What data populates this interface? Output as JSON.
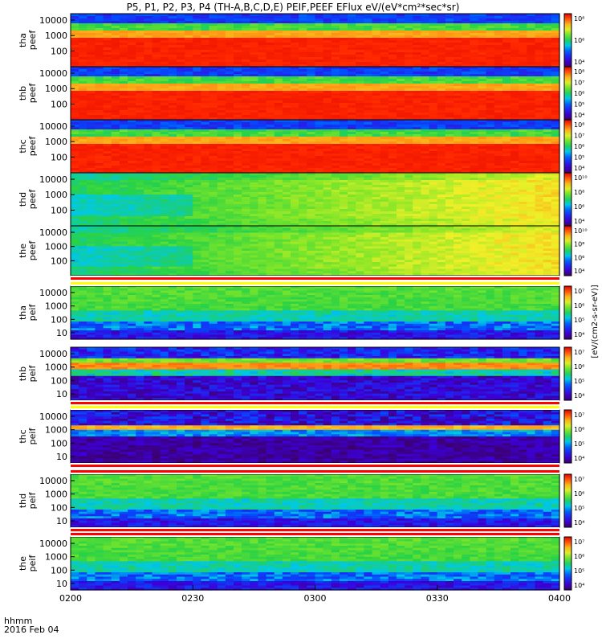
{
  "chart_data": {
    "type": "heatmap",
    "title": "P5, P1, P2, P3, P4 (TH-A,B,C,D,E) PEIF,PEEF EFlux eV/(eV*cm²*sec*sr)",
    "x_axis": {
      "ticks": [
        "0200",
        "0230",
        "0300",
        "0330",
        "0400"
      ],
      "time_label": "hhmm",
      "date_label": "2016 Feb 04"
    },
    "colorbar_label": "[eV/(cm2-s-sr-eV)]",
    "panels": [
      {
        "probe": "tha",
        "kind": "peef",
        "yticks": [
          "10000",
          "1000",
          "100"
        ],
        "ylog": true,
        "cbar_ticks": [
          "10⁴",
          "10⁶",
          "10⁸"
        ],
        "profile": "electron-hot"
      },
      {
        "probe": "thb",
        "kind": "peef",
        "yticks": [
          "10000",
          "1000",
          "100"
        ],
        "ylog": true,
        "cbar_ticks": [
          "10⁴",
          "10⁵",
          "10⁶",
          "10⁷",
          "10⁸"
        ],
        "profile": "electron-hot"
      },
      {
        "probe": "thc",
        "kind": "peef",
        "yticks": [
          "10000",
          "1000",
          "100"
        ],
        "ylog": true,
        "cbar_ticks": [
          "10⁴",
          "10⁵",
          "10⁶",
          "10⁷",
          "10⁸"
        ],
        "profile": "electron-hot"
      },
      {
        "probe": "thd",
        "kind": "peef",
        "yticks": [
          "10000",
          "1000",
          "100"
        ],
        "ylog": true,
        "cbar_ticks": [
          "10⁴",
          "10⁶",
          "10⁸",
          "10¹⁰"
        ],
        "profile": "electron-green"
      },
      {
        "probe": "the",
        "kind": "peef",
        "yticks": [
          "10000",
          "1000",
          "100"
        ],
        "ylog": true,
        "cbar_ticks": [
          "10⁴",
          "10⁶",
          "10⁸",
          "10¹⁰"
        ],
        "profile": "electron-green"
      },
      {
        "probe": "tha",
        "kind": "peif",
        "yticks": [
          "10000",
          "1000",
          "100",
          "10"
        ],
        "ylog": true,
        "cbar_ticks": [
          "10⁴",
          "10⁵",
          "10⁶",
          "10⁷"
        ],
        "profile": "ion-green"
      },
      {
        "probe": "thb",
        "kind": "peif",
        "yticks": [
          "10000",
          "1000",
          "100",
          "10"
        ],
        "ylog": true,
        "cbar_ticks": [
          "10⁴",
          "10⁵",
          "10⁶",
          "10⁷"
        ],
        "profile": "ion-band"
      },
      {
        "probe": "thc",
        "kind": "peif",
        "yticks": [
          "10000",
          "1000",
          "100",
          "10"
        ],
        "ylog": true,
        "cbar_ticks": [
          "10⁴",
          "10⁵",
          "10⁶",
          "10⁷"
        ],
        "profile": "ion-dark"
      },
      {
        "probe": "thd",
        "kind": "peif",
        "yticks": [
          "10000",
          "1000",
          "100",
          "10"
        ],
        "ylog": true,
        "cbar_ticks": [
          "10⁴",
          "10⁵",
          "10⁶",
          "10⁷"
        ],
        "profile": "ion-green"
      },
      {
        "probe": "the",
        "kind": "peif",
        "yticks": [
          "10000",
          "1000",
          "100",
          "10"
        ],
        "ylog": true,
        "cbar_ticks": [
          "10⁴",
          "10⁵",
          "10⁶",
          "10⁷"
        ],
        "profile": "ion-green"
      }
    ]
  }
}
